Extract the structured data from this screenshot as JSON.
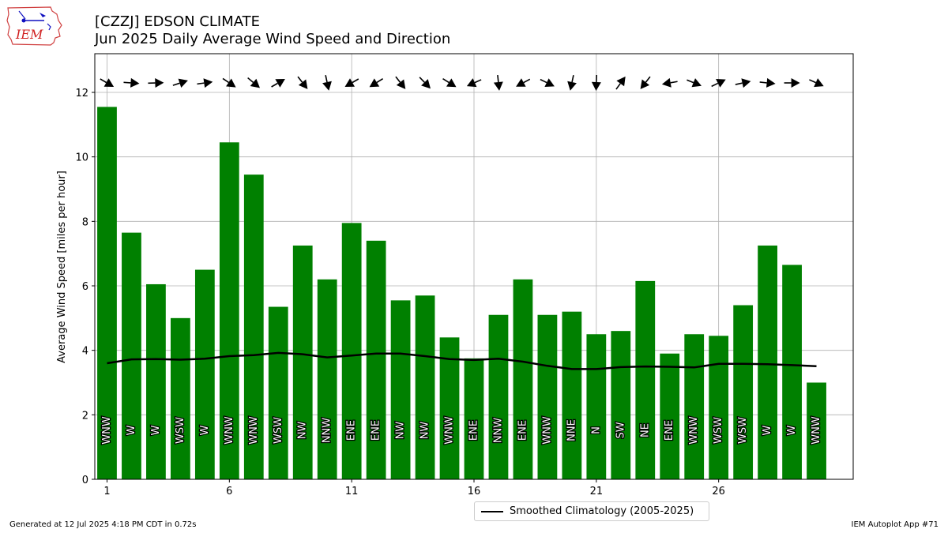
{
  "header": {
    "title_line1": "[CZZJ] EDSON CLIMATE",
    "title_line2": "Jun 2025 Daily Average Wind Speed and Direction",
    "logo_text": "IEM"
  },
  "footer": {
    "generated": "Generated at 12 Jul 2025 4:18 PM CDT in 0.72s",
    "app": "IEM Autoplot App #71"
  },
  "legend": {
    "label": "Smoothed Climatology (2005-2025)"
  },
  "colors": {
    "bar": "#008000",
    "line": "#000000",
    "grid": "#b0b0b0",
    "arrow": "#000000"
  },
  "chart_data": {
    "type": "bar",
    "title": "Jun 2025 Daily Average Wind Speed and Direction",
    "xlabel": "",
    "ylabel": "Average Wind Speed [miles per hour]",
    "xlim": [
      0.5,
      31.5
    ],
    "ylim": [
      0,
      13.2
    ],
    "x_ticks": [
      1,
      6,
      11,
      16,
      21,
      26
    ],
    "y_ticks": [
      0,
      2,
      4,
      6,
      8,
      10,
      12
    ],
    "grid": true,
    "legend_position": "bottom-center",
    "days": [
      1,
      2,
      3,
      4,
      5,
      6,
      7,
      8,
      9,
      10,
      11,
      12,
      13,
      14,
      15,
      16,
      17,
      18,
      19,
      20,
      21,
      22,
      23,
      24,
      25,
      26,
      27,
      28,
      29,
      30
    ],
    "series": [
      {
        "name": "",
        "kind": "bar",
        "values": [
          11.55,
          7.65,
          6.05,
          5.0,
          6.5,
          10.45,
          9.45,
          5.35,
          7.25,
          6.2,
          7.95,
          7.4,
          5.55,
          5.7,
          4.4,
          3.75,
          5.1,
          6.2,
          5.1,
          5.2,
          4.5,
          4.6,
          6.15,
          3.9,
          4.5,
          4.45,
          5.4,
          7.25,
          6.65,
          3.0
        ]
      },
      {
        "name": "Smoothed Climatology (2005-2025)",
        "kind": "line",
        "values": [
          3.6,
          3.72,
          3.73,
          3.71,
          3.74,
          3.82,
          3.85,
          3.92,
          3.88,
          3.78,
          3.84,
          3.9,
          3.9,
          3.82,
          3.73,
          3.7,
          3.74,
          3.65,
          3.52,
          3.42,
          3.42,
          3.48,
          3.5,
          3.49,
          3.47,
          3.58,
          3.58,
          3.57,
          3.54,
          3.51
        ]
      }
    ],
    "direction_labels": [
      "WNW",
      "W",
      "W",
      "WSW",
      "W",
      "WNW",
      "WNW",
      "WSW",
      "NW",
      "NNW",
      "ENE",
      "ENE",
      "NW",
      "NW",
      "WNW",
      "ENE",
      "NNW",
      "ENE",
      "WNW",
      "NNE",
      "N",
      "SW",
      "NE",
      "ENE",
      "WNW",
      "WSW",
      "WSW",
      "W",
      "W",
      "WNW"
    ],
    "arrow_directions_deg": [
      300,
      274,
      268,
      252,
      262,
      304,
      310,
      240,
      322,
      348,
      60,
      58,
      322,
      316,
      302,
      66,
      354,
      62,
      296,
      12,
      2,
      216,
      38,
      80,
      292,
      244,
      258,
      276,
      270,
      294
    ]
  }
}
